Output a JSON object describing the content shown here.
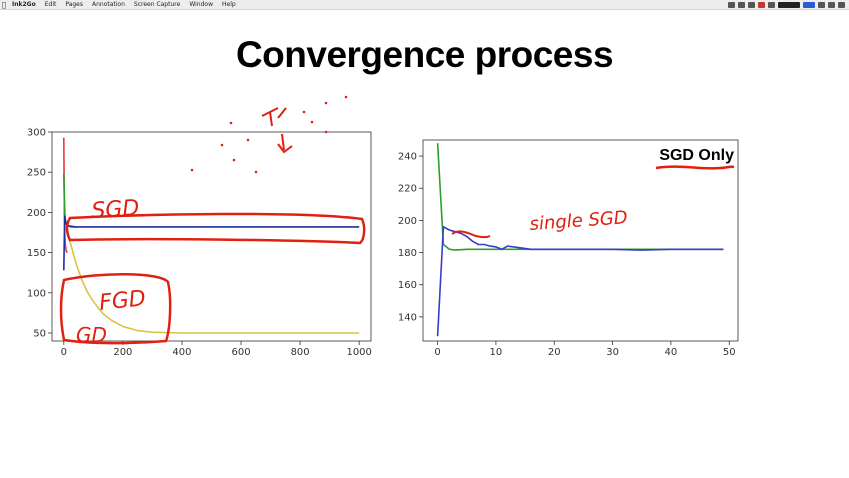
{
  "menubar": {
    "app_name": "Ink2Go",
    "items": [
      "Edit",
      "Pages",
      "Annotation",
      "Screen Capture",
      "Window",
      "Help"
    ]
  },
  "slide": {
    "title": "Convergence process"
  },
  "annotations": {
    "left_sgd": "SGD",
    "left_fgd": "FGD",
    "left_gd": "GD",
    "right_single": "single SGD",
    "sgd_only": "SGD Only"
  },
  "colors": {
    "ink_red": "#e02010",
    "sgd_blue": "#1f2f9e",
    "fgd_yellow": "#d9c440",
    "gd_green": "#2ca02c"
  },
  "chart_data": [
    {
      "type": "line",
      "xlim": [
        -40,
        1040
      ],
      "ylim": [
        40,
        300
      ],
      "xticks": [
        0,
        200,
        400,
        600,
        800,
        1000
      ],
      "yticks": [
        50,
        100,
        150,
        200,
        250,
        300
      ],
      "series": [
        {
          "color": "#d9c440",
          "x": [
            0,
            20,
            40,
            60,
            80,
            100,
            130,
            160,
            200,
            250,
            300,
            400,
            600,
            800,
            1000
          ],
          "y": [
            200,
            165,
            138,
            117,
            101,
            89,
            75,
            66,
            58,
            53,
            51,
            50,
            50,
            50,
            50
          ]
        },
        {
          "color": "#e03c3c",
          "x": [
            0,
            1,
            2,
            3,
            5,
            8,
            12
          ],
          "y": [
            293,
            240,
            200,
            175,
            160,
            152,
            150
          ]
        },
        {
          "color": "#2ca02c",
          "x": [
            0,
            2,
            4,
            6,
            10,
            15,
            25,
            40
          ],
          "y": [
            248,
            215,
            195,
            188,
            185,
            183,
            182,
            182
          ]
        },
        {
          "color": "#1f2f9e",
          "x": [
            0,
            3,
            6,
            10,
            20,
            40,
            100,
            200,
            300,
            400,
            500,
            600,
            700,
            800,
            900,
            1000
          ],
          "y": [
            128,
            196,
            188,
            184,
            183,
            182,
            182,
            182,
            182,
            182,
            182,
            182,
            182,
            182,
            182,
            182
          ]
        }
      ]
    },
    {
      "type": "line",
      "xlim": [
        -2.5,
        51.5
      ],
      "ylim": [
        125,
        250
      ],
      "xticks": [
        0,
        10,
        20,
        30,
        40,
        50
      ],
      "yticks": [
        140,
        160,
        180,
        200,
        220,
        240
      ],
      "title": "SGD Only",
      "series": [
        {
          "color": "#2ca02c",
          "x": [
            0,
            1,
            2,
            3,
            5,
            10,
            15,
            20,
            30,
            40,
            49
          ],
          "y": [
            248,
            185,
            182,
            181.5,
            182,
            182,
            182,
            182,
            182,
            182,
            182
          ]
        },
        {
          "color": "#3a3acd",
          "x": [
            0,
            1,
            2,
            3,
            4,
            5,
            6,
            7,
            8,
            9,
            10,
            11,
            12,
            14,
            16,
            20,
            25,
            30,
            35,
            40,
            45,
            49
          ],
          "y": [
            128,
            196,
            194,
            193,
            192,
            190,
            187,
            185,
            185,
            184,
            183.5,
            182,
            184,
            183,
            182,
            182,
            182,
            182,
            181.5,
            182,
            182,
            182
          ]
        }
      ]
    }
  ]
}
